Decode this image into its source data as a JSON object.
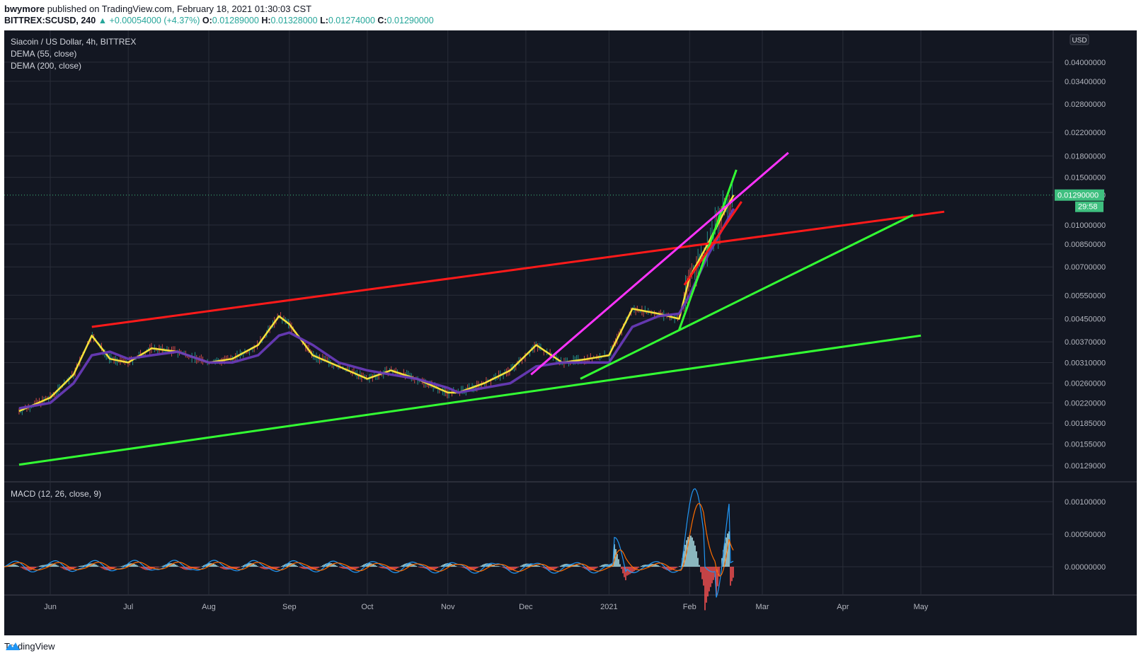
{
  "header": {
    "author": "bwymore",
    "published": "published on TradingView.com, February 18, 2021 01:30:03 CST",
    "symbol": "BITTREX:SCUSD, 240",
    "change": "▲ +0.00054000 (+4.37%)",
    "o_label": "O:",
    "o": "0.01289000",
    "h_label": "H:",
    "h": "0.01328000",
    "l_label": "L:",
    "l": "0.01274000",
    "c_label": "C:",
    "c": "0.01290000"
  },
  "legend": {
    "title": "Siacoin / US Dollar, 4h, BITTREX",
    "ind1": "DEMA (55, close)",
    "ind2": "DEMA (200, close)",
    "macd": "MACD (12, 26, close, 9)"
  },
  "price_axis": {
    "currency": "USD",
    "last_price": "0.01290000",
    "countdown": "29:58",
    "last_label_color": "#3fbf7f"
  },
  "footer": {
    "brand": "TradingView"
  },
  "colors": {
    "background": "#131722",
    "grid": "#2a2e39",
    "dema55": "#ffeb3b",
    "dema200": "#673ab7",
    "red_trend": "#ff1a1a",
    "green_trend": "#33ff33",
    "magenta_trend": "#ff33ff",
    "macd_line": "#2196f3",
    "signal_line": "#ff6d00",
    "hist_up": "#b2ebf2",
    "hist_down": "#ff5252"
  },
  "chart_data": {
    "type": "line",
    "scale": "log",
    "x_ticks": [
      "Jun",
      "Jul",
      "Aug",
      "Sep",
      "Oct",
      "Nov",
      "Dec",
      "2021",
      "Feb",
      "Mar",
      "Apr",
      "May"
    ],
    "y_ticks": [
      "0.04000000",
      "0.03400000",
      "0.02800000",
      "0.02200000",
      "0.01800000",
      "0.01500000",
      "0.01290000",
      "0.01000000",
      "0.00850000",
      "0.00700000",
      "0.00550000",
      "0.00450000",
      "0.00370000",
      "0.00310000",
      "0.00260000",
      "0.00220000",
      "0.00185000",
      "0.00155000",
      "0.00129000"
    ],
    "macd_ticks": [
      "0.00100000",
      "0.00050000",
      "0.00000000"
    ],
    "series": [
      {
        "name": "DEMA (55, close)",
        "x": [
          "May 20",
          "Jun 1",
          "Jun 10",
          "Jun 17",
          "Jun 24",
          "Jul 1",
          "Jul 10",
          "Jul 20",
          "Aug 1",
          "Aug 10",
          "Aug 20",
          "Aug 28",
          "Sep 1",
          "Sep 10",
          "Sep 20",
          "Oct 1",
          "Oct 10",
          "Oct 20",
          "Nov 1",
          "Nov 5",
          "Nov 15",
          "Nov 25",
          "Dec 5",
          "Dec 15",
          "Dec 25",
          "Jan 1",
          "Jan 10",
          "Jan 20",
          "Jan 28",
          "Feb 1",
          "Feb 8",
          "Feb 15",
          "Feb 18"
        ],
        "y": [
          0.00205,
          0.0023,
          0.0028,
          0.0039,
          0.0032,
          0.0031,
          0.0035,
          0.0034,
          0.0031,
          0.0032,
          0.0036,
          0.0046,
          0.0043,
          0.0033,
          0.003,
          0.0027,
          0.0029,
          0.0027,
          0.0024,
          0.0024,
          0.0026,
          0.0029,
          0.0036,
          0.0031,
          0.0032,
          0.0033,
          0.0049,
          0.0047,
          0.0045,
          0.0064,
          0.0085,
          0.0115,
          0.0129
        ]
      },
      {
        "name": "DEMA (200, close)",
        "x": [
          "May 20",
          "Jun 1",
          "Jun 10",
          "Jun 17",
          "Jun 24",
          "Jul 1",
          "Jul 10",
          "Jul 20",
          "Aug 1",
          "Aug 10",
          "Aug 20",
          "Aug 28",
          "Sep 1",
          "Sep 10",
          "Sep 20",
          "Oct 1",
          "Oct 10",
          "Oct 20",
          "Nov 1",
          "Nov 5",
          "Nov 15",
          "Nov 25",
          "Dec 5",
          "Dec 15",
          "Dec 25",
          "Jan 1",
          "Jan 10",
          "Jan 20",
          "Jan 28",
          "Feb 1",
          "Feb 8",
          "Feb 15",
          "Feb 18"
        ],
        "y": [
          0.0021,
          0.0022,
          0.0026,
          0.0033,
          0.0034,
          0.0032,
          0.0033,
          0.0034,
          0.0031,
          0.0031,
          0.0033,
          0.0039,
          0.004,
          0.0036,
          0.0031,
          0.0029,
          0.0028,
          0.0027,
          0.0025,
          0.0024,
          0.0025,
          0.0026,
          0.003,
          0.0031,
          0.0031,
          0.0031,
          0.0042,
          0.0046,
          0.0047,
          0.0055,
          0.0077,
          0.0102,
          0.0115
        ]
      }
    ],
    "trendlines": [
      {
        "color": "red",
        "x": [
          "Jun 17",
          "May 10"
        ],
        "y": [
          0.0042,
          0.0112
        ]
      },
      {
        "color": "green",
        "x": [
          "May 20",
          "May 1"
        ],
        "y": [
          0.0013,
          0.0039
        ]
      },
      {
        "color": "green",
        "x": [
          "Dec 22",
          "Apr 28"
        ],
        "y": [
          0.0027,
          0.0109
        ]
      },
      {
        "color": "green",
        "x": [
          "Jan 28",
          "Feb 19"
        ],
        "y": [
          0.0041,
          0.016
        ]
      },
      {
        "color": "magenta",
        "x": [
          "Dec 3",
          "Mar 11"
        ],
        "y": [
          0.0028,
          0.0185
        ]
      },
      {
        "color": "red",
        "x": [
          "Jan 30",
          "Feb 21"
        ],
        "y": [
          0.006,
          0.0122
        ]
      }
    ]
  }
}
